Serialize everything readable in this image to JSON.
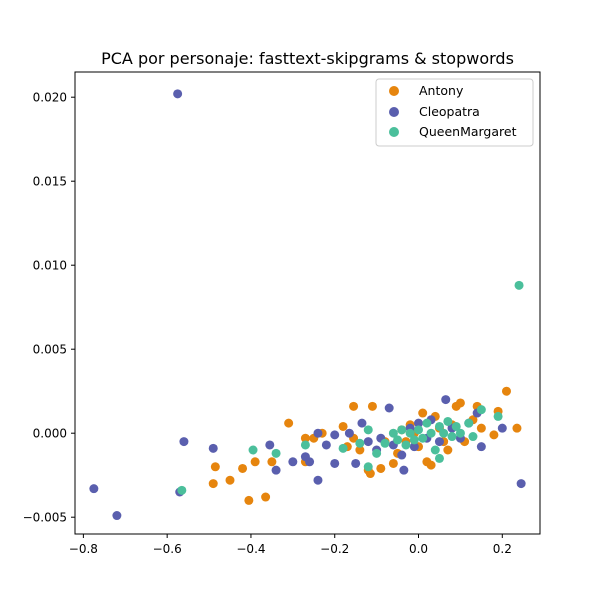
{
  "chart_data": {
    "type": "scatter",
    "title": "PCA por personaje: fasttext-skipgrams & stopwords",
    "xlabel": "",
    "ylabel": "",
    "xlim": [
      -0.82,
      0.29
    ],
    "ylim": [
      -0.006,
      0.0215
    ],
    "x_ticks": [
      -0.8,
      -0.6,
      -0.4,
      -0.2,
      0.0,
      0.2
    ],
    "x_tick_labels": [
      "−0.8",
      "−0.6",
      "−0.4",
      "−0.2",
      "0.0",
      "0.2"
    ],
    "y_ticks": [
      -0.005,
      0.0,
      0.005,
      0.01,
      0.015,
      0.02
    ],
    "y_tick_labels": [
      "−0.005",
      "0.000",
      "0.005",
      "0.010",
      "0.015",
      "0.020"
    ],
    "grid": false,
    "legend_position": "top-right",
    "series": [
      {
        "name": "Antony",
        "color": "#e6850e",
        "points": [
          [
            -0.49,
            -0.003
          ],
          [
            -0.485,
            -0.002
          ],
          [
            -0.45,
            -0.0028
          ],
          [
            -0.42,
            -0.0021
          ],
          [
            -0.405,
            -0.004
          ],
          [
            -0.39,
            -0.0017
          ],
          [
            -0.365,
            -0.0038
          ],
          [
            -0.35,
            -0.0017
          ],
          [
            -0.31,
            0.0006
          ],
          [
            -0.27,
            -0.0017
          ],
          [
            -0.27,
            -0.0003
          ],
          [
            -0.25,
            -0.0003
          ],
          [
            -0.23,
            0.0
          ],
          [
            -0.18,
            0.0004
          ],
          [
            -0.17,
            -0.0008
          ],
          [
            -0.155,
            0.0016
          ],
          [
            -0.155,
            -0.0003
          ],
          [
            -0.14,
            -0.001
          ],
          [
            -0.12,
            -0.0022
          ],
          [
            -0.115,
            -0.0024
          ],
          [
            -0.11,
            0.0016
          ],
          [
            -0.09,
            -0.0021
          ],
          [
            -0.08,
            -0.0005
          ],
          [
            -0.06,
            -0.0018
          ],
          [
            -0.05,
            -0.0012
          ],
          [
            -0.04,
            0.0002
          ],
          [
            -0.03,
            -0.0005
          ],
          [
            -0.02,
            0.0005
          ],
          [
            -0.01,
            0.0
          ],
          [
            0.0,
            -0.0008
          ],
          [
            0.01,
            0.0012
          ],
          [
            0.02,
            -0.0017
          ],
          [
            0.03,
            -0.0019
          ],
          [
            0.04,
            0.001
          ],
          [
            0.05,
            0.0003
          ],
          [
            0.06,
            -0.0005
          ],
          [
            0.07,
            -0.001
          ],
          [
            0.08,
            0.0005
          ],
          [
            0.09,
            0.0016
          ],
          [
            0.1,
            0.0018
          ],
          [
            0.11,
            -0.0005
          ],
          [
            0.13,
            0.0008
          ],
          [
            0.14,
            0.0016
          ],
          [
            0.15,
            0.0003
          ],
          [
            0.18,
            -0.0001
          ],
          [
            0.19,
            0.0013
          ],
          [
            0.21,
            0.0025
          ],
          [
            0.235,
            0.0003
          ]
        ]
      },
      {
        "name": "Cleopatra",
        "color": "#5a5fae",
        "points": [
          [
            -0.775,
            -0.0033
          ],
          [
            -0.72,
            -0.0049
          ],
          [
            -0.575,
            0.0202
          ],
          [
            -0.57,
            -0.0035
          ],
          [
            -0.56,
            -0.0005
          ],
          [
            -0.49,
            -0.0009
          ],
          [
            -0.355,
            -0.0007
          ],
          [
            -0.34,
            -0.0022
          ],
          [
            -0.3,
            -0.0017
          ],
          [
            -0.27,
            -0.0014
          ],
          [
            -0.26,
            -0.0017
          ],
          [
            -0.24,
            -0.0028
          ],
          [
            -0.24,
            0.0
          ],
          [
            -0.22,
            -0.0007
          ],
          [
            -0.2,
            -0.0018
          ],
          [
            -0.2,
            -0.0001
          ],
          [
            -0.165,
            0.0
          ],
          [
            -0.15,
            -0.0018
          ],
          [
            -0.135,
            0.0006
          ],
          [
            -0.12,
            -0.0005
          ],
          [
            -0.1,
            -0.001
          ],
          [
            -0.09,
            -0.0003
          ],
          [
            -0.07,
            0.0015
          ],
          [
            -0.06,
            -0.0007
          ],
          [
            -0.04,
            -0.0013
          ],
          [
            -0.035,
            -0.0022
          ],
          [
            -0.02,
            0.0003
          ],
          [
            -0.01,
            -0.0008
          ],
          [
            0.0,
            0.0006
          ],
          [
            0.02,
            -0.0003
          ],
          [
            0.03,
            0.0008
          ],
          [
            0.05,
            -0.0005
          ],
          [
            0.065,
            0.002
          ],
          [
            0.08,
            0.0003
          ],
          [
            0.1,
            -0.0003
          ],
          [
            0.12,
            0.0006
          ],
          [
            0.14,
            0.0012
          ],
          [
            0.15,
            -0.0008
          ],
          [
            0.2,
            0.0003
          ],
          [
            0.245,
            -0.003
          ]
        ]
      },
      {
        "name": "QueenMargaret",
        "color": "#4bbf9b",
        "points": [
          [
            -0.565,
            -0.0034
          ],
          [
            -0.395,
            -0.001
          ],
          [
            -0.34,
            -0.0012
          ],
          [
            -0.27,
            -0.0007
          ],
          [
            -0.18,
            -0.0009
          ],
          [
            -0.14,
            -0.0006
          ],
          [
            -0.12,
            0.0002
          ],
          [
            -0.12,
            -0.002
          ],
          [
            -0.1,
            -0.0012
          ],
          [
            -0.08,
            -0.0006
          ],
          [
            -0.06,
            0.0
          ],
          [
            -0.05,
            -0.0004
          ],
          [
            -0.04,
            0.0002
          ],
          [
            -0.03,
            -0.0007
          ],
          [
            -0.02,
            0.0
          ],
          [
            -0.01,
            -0.0004
          ],
          [
            0.0,
            0.0002
          ],
          [
            0.01,
            -0.0003
          ],
          [
            0.02,
            0.0006
          ],
          [
            0.03,
            0.0
          ],
          [
            0.04,
            -0.001
          ],
          [
            0.05,
            0.0004
          ],
          [
            0.05,
            -0.0015
          ],
          [
            0.06,
            0.0
          ],
          [
            0.07,
            0.0007
          ],
          [
            0.08,
            -0.0002
          ],
          [
            0.09,
            0.0004
          ],
          [
            0.1,
            0.0
          ],
          [
            0.12,
            0.0006
          ],
          [
            0.13,
            -0.0002
          ],
          [
            0.15,
            0.0014
          ],
          [
            0.19,
            0.001
          ],
          [
            0.24,
            0.0088
          ]
        ]
      }
    ]
  }
}
